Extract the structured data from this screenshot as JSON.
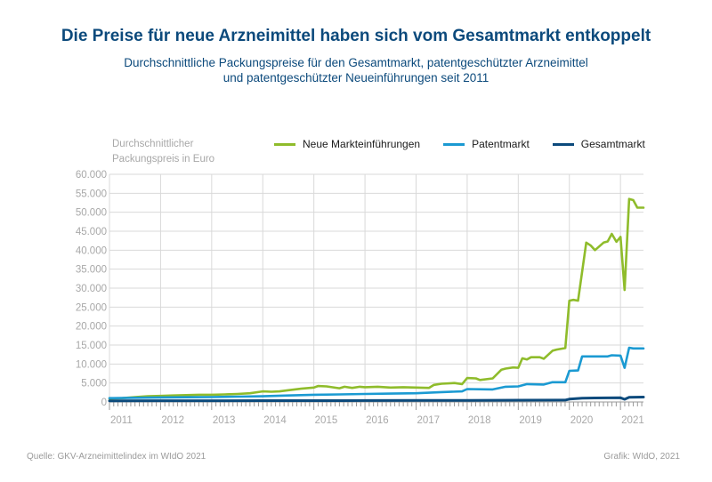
{
  "title": "Die Preise für neue Arzneimittel haben sich vom Gesamtmarkt entkoppelt",
  "subtitle_line1": "Durchschnittliche Packungspreise für den Gesamtmarkt, patentgeschützter Arzneimittel",
  "subtitle_line2": "und patentgeschützter Neueinführungen seit 2011",
  "footer_source": "Quelle: GKV-Arzneimittelindex im WIdO 2021",
  "footer_credit": "Grafik: WIdO, 2021",
  "chart_data": {
    "type": "line",
    "ylabel_line1": "Durchschnittlicher",
    "ylabel_line2": "Packungspreis in Euro",
    "ylim": [
      0,
      60000
    ],
    "xlim": [
      2011,
      2021.45
    ],
    "y_ticks": [
      0,
      5000,
      10000,
      15000,
      20000,
      25000,
      30000,
      35000,
      40000,
      45000,
      50000,
      55000,
      60000
    ],
    "y_tick_labels": [
      "0",
      "5.000",
      "10.000",
      "15.000",
      "20.000",
      "25.000",
      "30.000",
      "35.000",
      "40.000",
      "45.000",
      "50.000",
      "55.000",
      "60.000"
    ],
    "x_ticks": [
      2011,
      2012,
      2013,
      2014,
      2015,
      2016,
      2017,
      2018,
      2019,
      2020,
      2021
    ],
    "x_tick_labels": [
      "2011",
      "2012",
      "2013",
      "2014",
      "2015",
      "2016",
      "2017",
      "2018",
      "2019",
      "2020",
      "2021"
    ],
    "grid": true,
    "legend_position": "top",
    "series": [
      {
        "name": "Neue Markteinführungen",
        "color": "#8fbc2b",
        "x": [
          2011.0,
          2011.25,
          2011.5,
          2011.75,
          2012.0,
          2012.25,
          2012.5,
          2012.75,
          2013.0,
          2013.25,
          2013.5,
          2013.75,
          2014.0,
          2014.17,
          2014.33,
          2014.5,
          2014.75,
          2015.0,
          2015.08,
          2015.25,
          2015.5,
          2015.6,
          2015.75,
          2015.9,
          2016.0,
          2016.25,
          2016.5,
          2016.75,
          2017.0,
          2017.25,
          2017.35,
          2017.5,
          2017.75,
          2017.9,
          2018.0,
          2018.17,
          2018.25,
          2018.5,
          2018.67,
          2018.75,
          2018.9,
          2019.0,
          2019.08,
          2019.17,
          2019.25,
          2019.42,
          2019.5,
          2019.67,
          2019.75,
          2019.92,
          2020.0,
          2020.08,
          2020.17,
          2020.33,
          2020.42,
          2020.5,
          2020.67,
          2020.75,
          2020.83,
          2020.92,
          2021.0,
          2021.08,
          2021.17,
          2021.25,
          2021.33,
          2021.45
        ],
        "y": [
          900,
          1000,
          1300,
          1500,
          1600,
          1700,
          1800,
          1900,
          1900,
          2000,
          2100,
          2300,
          2800,
          2700,
          2800,
          3100,
          3500,
          3800,
          4200,
          4100,
          3600,
          4000,
          3700,
          4000,
          3900,
          4000,
          3800,
          3900,
          3800,
          3700,
          4500,
          4800,
          5000,
          4700,
          6300,
          6200,
          5800,
          6200,
          8500,
          8800,
          9100,
          9000,
          11500,
          11200,
          11800,
          11800,
          11400,
          13500,
          13800,
          14200,
          26700,
          26900,
          26700,
          42000,
          41200,
          40000,
          42000,
          42300,
          44300,
          42200,
          43500,
          29500,
          53500,
          53200,
          51200,
          51200
        ]
      },
      {
        "name": "Patentmarkt",
        "color": "#1b9ad2",
        "x": [
          2011.0,
          2011.5,
          2012.0,
          2012.5,
          2013.0,
          2013.5,
          2014.0,
          2014.5,
          2015.0,
          2015.5,
          2016.0,
          2016.5,
          2017.0,
          2017.5,
          2017.9,
          2018.0,
          2018.5,
          2018.75,
          2019.0,
          2019.17,
          2019.5,
          2019.67,
          2019.92,
          2020.0,
          2020.17,
          2020.25,
          2020.5,
          2020.75,
          2020.83,
          2021.0,
          2021.08,
          2021.17,
          2021.25,
          2021.45
        ],
        "y": [
          1000,
          1100,
          1200,
          1250,
          1300,
          1400,
          1500,
          1700,
          1900,
          2000,
          2100,
          2200,
          2300,
          2600,
          2800,
          3400,
          3300,
          4000,
          4100,
          4700,
          4600,
          5200,
          5200,
          8200,
          8300,
          12000,
          12000,
          12000,
          12300,
          12200,
          9000,
          14300,
          14100,
          14100
        ]
      },
      {
        "name": "Gesamtmarkt",
        "color": "#0c4a7c",
        "x": [
          2011.0,
          2012.0,
          2013.0,
          2014.0,
          2015.0,
          2016.0,
          2017.0,
          2018.0,
          2019.0,
          2019.92,
          2020.0,
          2020.25,
          2020.5,
          2021.0,
          2021.08,
          2021.17,
          2021.45
        ],
        "y": [
          300,
          320,
          330,
          340,
          360,
          380,
          400,
          430,
          460,
          500,
          750,
          1000,
          1050,
          1100,
          700,
          1250,
          1300
        ]
      }
    ]
  }
}
